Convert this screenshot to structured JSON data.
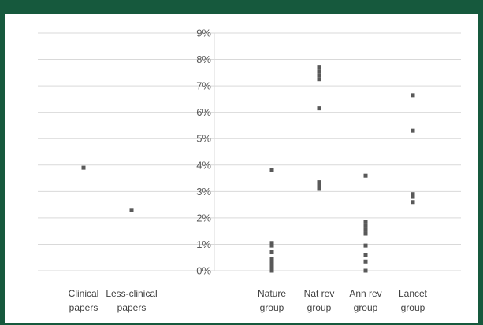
{
  "chart_data": {
    "type": "scatter",
    "categories": [
      [
        "Clinical",
        "papers"
      ],
      [
        "Less-clinical",
        "papers"
      ],
      [],
      [
        "Nature",
        "group"
      ],
      [
        "Nat rev",
        "group"
      ],
      [
        "Ann rev",
        "group"
      ],
      [
        "Lancet",
        "group"
      ]
    ],
    "series": [
      {
        "values": [
          [
            3.9
          ],
          [
            2.3
          ],
          [],
          [
            3.8,
            1.05,
            0.95,
            0.7,
            0.45,
            0.35,
            0.25,
            0.15,
            0.05,
            0.0
          ],
          [
            7.7,
            7.55,
            7.4,
            7.25,
            6.15,
            3.35,
            3.25,
            3.1
          ],
          [
            3.6,
            1.85,
            1.7,
            1.55,
            1.4,
            0.95,
            0.6,
            0.35,
            0.0
          ],
          [
            6.65,
            5.3,
            2.9,
            2.8,
            2.6
          ]
        ]
      }
    ],
    "ylim": [
      0,
      9
    ],
    "yticks": [
      0,
      1,
      2,
      3,
      4,
      5,
      6,
      7,
      8,
      9
    ],
    "ytick_labels": [
      "0%",
      "1%",
      "2%",
      "3%",
      "4%",
      "5%",
      "6%",
      "7%",
      "8%",
      "9%"
    ],
    "grid": true,
    "marker_color": "#595959",
    "grid_color": "#d9d9d9",
    "frame_color": "#16593d"
  }
}
